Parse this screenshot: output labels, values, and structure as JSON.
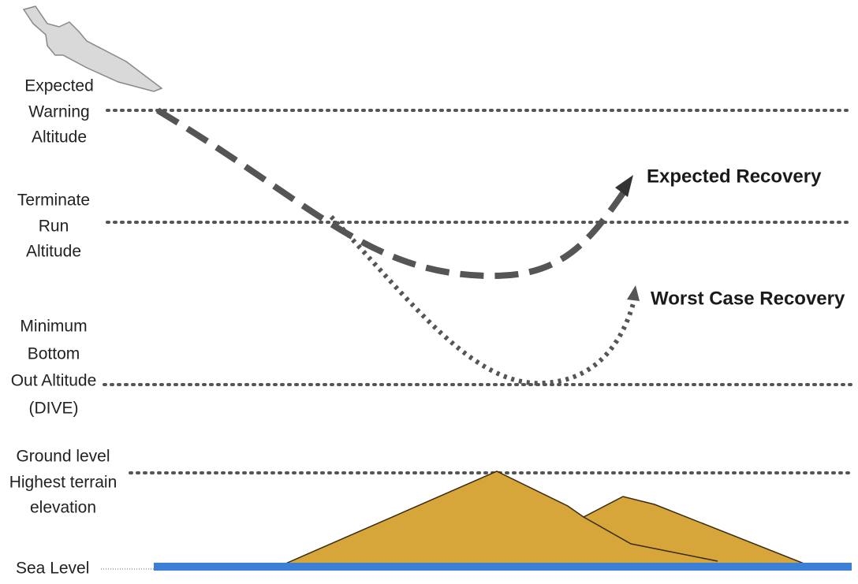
{
  "altitudes": [
    [
      "Expected",
      "Warning",
      "Altitude"
    ],
    [
      "Terminate",
      "Run",
      "Altitude"
    ],
    [
      "Minimum",
      "Bottom",
      "Out Altitude",
      "(DIVE)"
    ],
    [
      "Ground level",
      "Highest terrain",
      "elevation"
    ],
    [
      "Sea Level"
    ]
  ],
  "recoveries": [
    "Expected Recovery",
    "Worst Case Recovery"
  ]
}
